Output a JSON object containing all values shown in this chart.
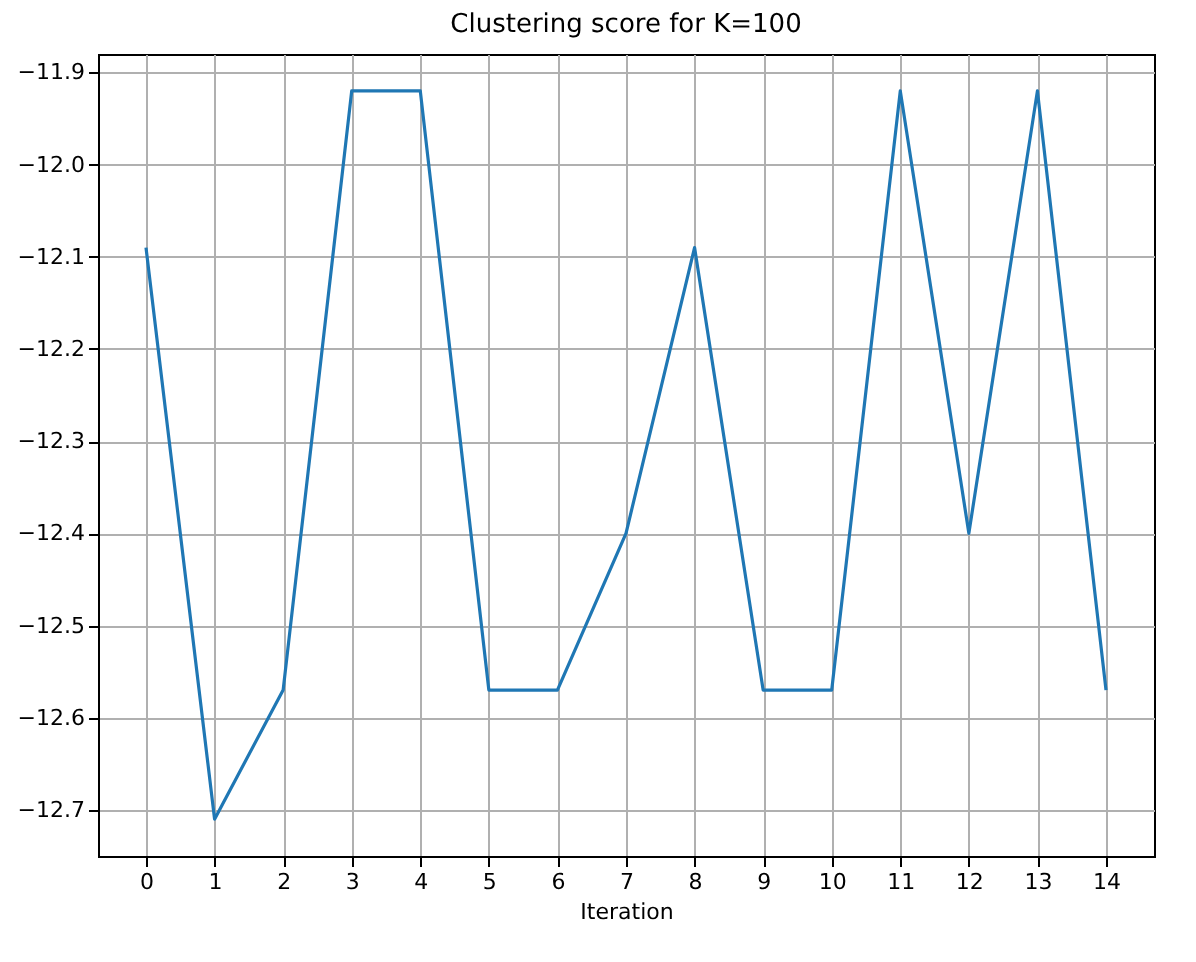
{
  "chart_data": {
    "type": "line",
    "title": "Clustering score for K=100",
    "xlabel": "Iteration",
    "x": [
      0,
      1,
      2,
      3,
      4,
      5,
      6,
      7,
      8,
      9,
      10,
      11,
      12,
      13,
      14
    ],
    "series": [
      {
        "color": "#1f77b4",
        "values": [
          -12.09,
          -12.71,
          -12.57,
          -11.92,
          -11.92,
          -12.57,
          -12.57,
          -12.4,
          -12.09,
          -12.57,
          -12.57,
          -11.92,
          -12.4,
          -11.92,
          -12.57
        ]
      }
    ],
    "xlim": [
      -0.7,
      14.7
    ],
    "xticks": [
      0,
      1,
      2,
      3,
      4,
      5,
      6,
      7,
      8,
      9,
      10,
      11,
      12,
      13,
      14
    ],
    "ylim": [
      -12.75,
      -11.88
    ],
    "yticks": [
      -12.7,
      -12.6,
      -12.5,
      -12.4,
      -12.3,
      -12.2,
      -12.1,
      {
        "value": -12.0,
        "label": "−12.0"
      },
      -11.9
    ],
    "grid": true,
    "marker": "none",
    "line_style": "solid"
  }
}
